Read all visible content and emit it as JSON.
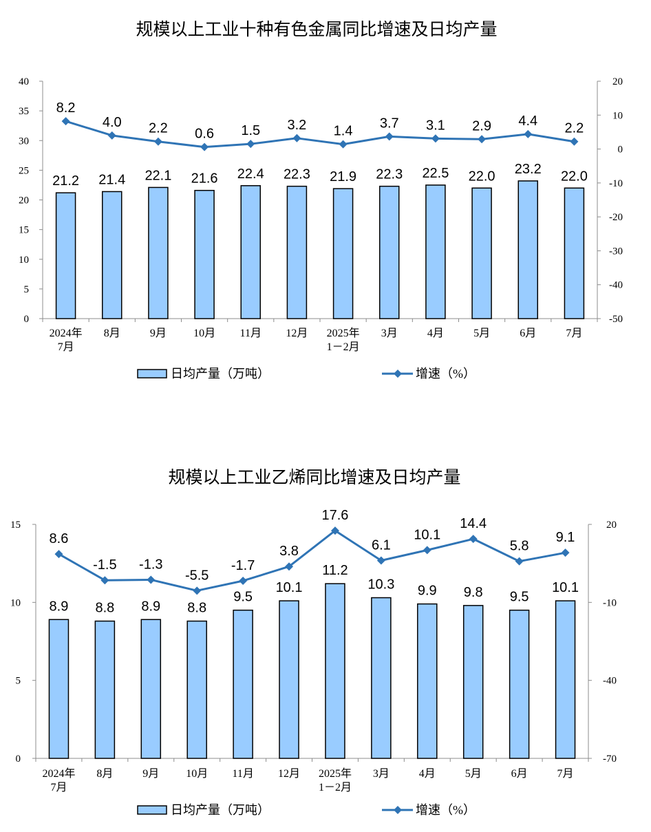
{
  "chart_data": [
    {
      "type": "bar",
      "title": "规模以上工业十种有色金属同比增速及日均产量",
      "categories": [
        "2024年\n7月",
        "8月",
        "9月",
        "10月",
        "11月",
        "12月",
        "2025年\n1－2月",
        "3月",
        "4月",
        "5月",
        "6月",
        "7月"
      ],
      "series": [
        {
          "name": "日均产量（万吨）",
          "type": "bar",
          "axis": "left",
          "values": [
            21.2,
            21.4,
            22.1,
            21.6,
            22.4,
            22.3,
            21.9,
            22.3,
            22.5,
            22.0,
            23.2,
            22.0
          ]
        },
        {
          "name": "增速（%）",
          "type": "line",
          "axis": "right",
          "values": [
            8.2,
            4.0,
            2.2,
            0.6,
            1.5,
            3.2,
            1.4,
            3.7,
            3.1,
            2.9,
            4.4,
            2.2
          ]
        }
      ],
      "y_left": {
        "range": [
          0,
          40
        ],
        "ticks": [
          0,
          5,
          10,
          15,
          20,
          25,
          30,
          35,
          40
        ]
      },
      "y_right": {
        "range": [
          -50,
          20
        ],
        "ticks": [
          -50,
          -40,
          -30,
          -20,
          -10,
          0,
          10,
          20
        ]
      },
      "grid": false,
      "legend_position": "bottom",
      "colors": {
        "bar_fill": "#99CCFF",
        "bar_border": "#000000",
        "line": "#2F74B5",
        "axis": "#8C8C8C"
      }
    },
    {
      "type": "bar",
      "title": "规模以上工业乙烯同比增速及日均产量",
      "categories": [
        "2024年\n7月",
        "8月",
        "9月",
        "10月",
        "11月",
        "12月",
        "2025年\n1－2月",
        "3月",
        "4月",
        "5月",
        "6月",
        "7月"
      ],
      "series": [
        {
          "name": "日均产量（万吨）",
          "type": "bar",
          "axis": "left",
          "values": [
            8.9,
            8.8,
            8.9,
            8.8,
            9.5,
            10.1,
            11.2,
            10.3,
            9.9,
            9.8,
            9.5,
            10.1
          ]
        },
        {
          "name": "增速（%）",
          "type": "line",
          "axis": "right",
          "values": [
            8.6,
            -1.5,
            -1.3,
            -5.5,
            -1.7,
            3.8,
            17.6,
            6.1,
            10.1,
            14.4,
            5.8,
            9.1
          ]
        }
      ],
      "y_left": {
        "range": [
          0,
          15
        ],
        "ticks": [
          0,
          5,
          10,
          15
        ]
      },
      "y_right": {
        "range": [
          -70,
          20
        ],
        "ticks": [
          -70,
          -40,
          -10,
          20
        ]
      },
      "grid": false,
      "legend_position": "bottom",
      "colors": {
        "bar_fill": "#99CCFF",
        "bar_border": "#000000",
        "line": "#2F74B5",
        "axis": "#8C8C8C"
      }
    }
  ]
}
